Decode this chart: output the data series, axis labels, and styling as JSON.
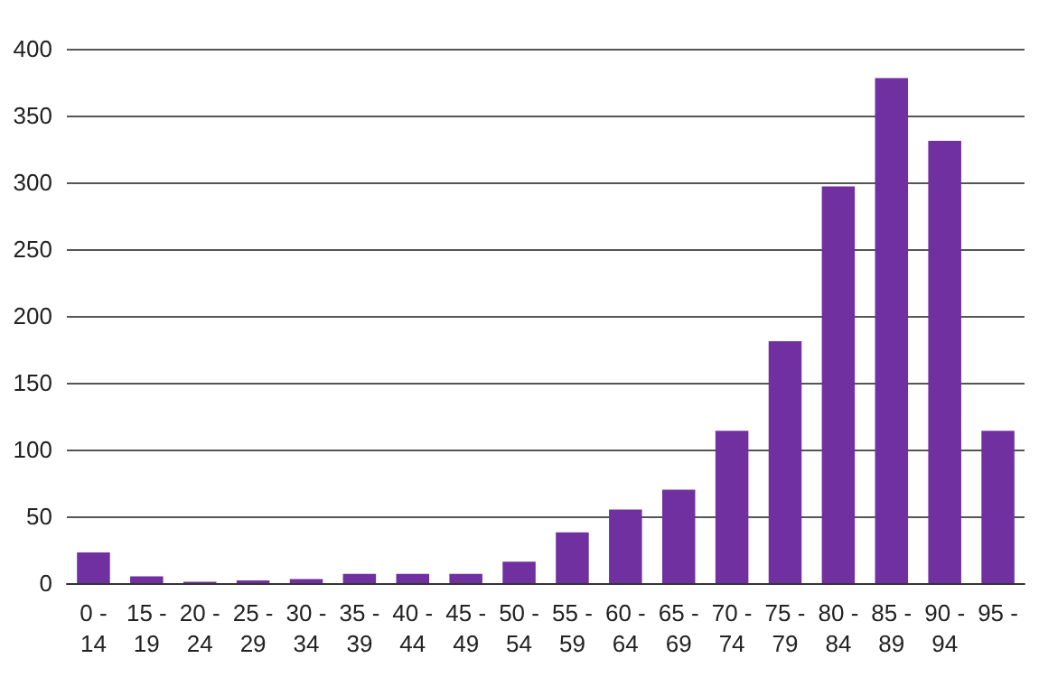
{
  "chart_data": {
    "type": "bar",
    "categories": [
      "0 - 14",
      "15 - 19",
      "20 - 24",
      "25 - 29",
      "30 - 34",
      "35 - 39",
      "40 - 44",
      "45 - 49",
      "50 - 54",
      "55 - 59",
      "60 - 64",
      "65 - 69",
      "70 - 74",
      "75 - 79",
      "80 - 84",
      "85 - 89",
      "90 - 94",
      "95 -"
    ],
    "values": [
      23,
      5,
      1,
      2,
      3,
      7,
      7,
      7,
      16,
      38,
      55,
      70,
      114,
      181,
      297,
      378,
      331,
      114
    ],
    "color": "#7030a0",
    "ylim": [
      0,
      400
    ],
    "yticks": [
      0,
      50,
      100,
      150,
      200,
      250,
      300,
      350,
      400
    ],
    "grid": "y"
  }
}
